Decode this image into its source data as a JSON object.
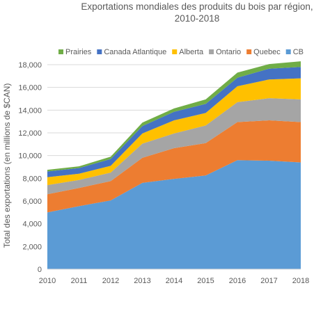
{
  "chart_data": {
    "type": "area",
    "stacked": true,
    "title_lines": [
      "Exportations mondiales des produits du bois par région,",
      "2010-2018"
    ],
    "xlabel": "",
    "ylabel": "Total des exportations (en millions de $CAN)",
    "categories": [
      "2010",
      "2011",
      "2012",
      "2013",
      "2014",
      "2015",
      "2016",
      "2017",
      "2018"
    ],
    "ylim": [
      0,
      18000
    ],
    "yticks": [
      0,
      2000,
      4000,
      6000,
      8000,
      10000,
      12000,
      14000,
      16000,
      18000
    ],
    "ytick_labels": [
      "0",
      "2,000",
      "4,000",
      "6,000",
      "8,000",
      "10,000",
      "12,000",
      "14,000",
      "16,000",
      "18,000"
    ],
    "grid": "horizontal",
    "legend_position": "top",
    "legend_order": [
      "Prairies",
      "Canada Atlantique",
      "Alberta",
      "Ontario",
      "Quebec",
      "CB"
    ],
    "series": [
      {
        "name": "CB",
        "color": "#5b9bd5",
        "values": [
          5000,
          5550,
          6050,
          7600,
          7950,
          8250,
          9600,
          9550,
          9400
        ]
      },
      {
        "name": "Quebec",
        "color": "#ed7d31",
        "values": [
          1600,
          1600,
          1700,
          2200,
          2700,
          2850,
          3350,
          3550,
          3550
        ]
      },
      {
        "name": "Ontario",
        "color": "#a5a5a5",
        "values": [
          800,
          700,
          750,
          1250,
          1300,
          1550,
          1750,
          1950,
          2000
        ]
      },
      {
        "name": "Alberta",
        "color": "#ffc000",
        "values": [
          700,
          550,
          600,
          900,
          1150,
          1100,
          1400,
          1650,
          1850
        ]
      },
      {
        "name": "Canada Atlantique",
        "color": "#4472c4",
        "values": [
          500,
          500,
          600,
          650,
          750,
          800,
          750,
          950,
          1000
        ]
      },
      {
        "name": "Prairies",
        "color": "#70ad47",
        "values": [
          150,
          150,
          200,
          300,
          300,
          400,
          450,
          400,
          500
        ]
      }
    ]
  }
}
